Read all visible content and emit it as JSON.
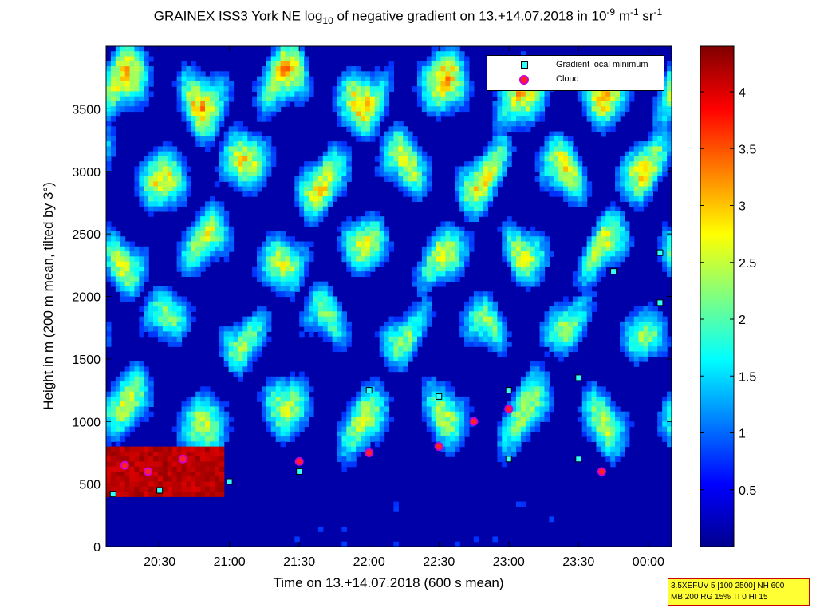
{
  "title": {
    "prefix": "GRAINEX ISS3 York NE log",
    "sub": "10",
    "middle": " of negative gradient on 13.+14.07.2018 in 10",
    "sup1": "-9",
    "unit1": " m",
    "sup2": "-1",
    "unit2": " sr",
    "sup3": "-1"
  },
  "legend": {
    "items": [
      {
        "label": "Gradient local minimum",
        "marker": "cyan-square"
      },
      {
        "label": "Cloud",
        "marker": "red-circle"
      }
    ]
  },
  "infobox": {
    "line1": "3.5XEFUV 5 [100 2500] NH 600",
    "line2": "MB 200 RG 15% TI 0 HI 15"
  },
  "colors": {
    "background_field": "#0000a8",
    "gradient_marker": "#33ffff",
    "cloud_marker": "#ff2020",
    "cloud_outline": "#d000d0"
  },
  "chart_data": {
    "type": "heatmap",
    "xlabel": "Time on 13.+14.07.2018 (600 s mean)",
    "ylabel": "Height in m (200 m mean, tilted by 3°)",
    "x_ticks": [
      "20:30",
      "21:00",
      "21:30",
      "22:00",
      "22:30",
      "23:00",
      "23:30",
      "00:00"
    ],
    "y_ticks": [
      "0",
      "500",
      "1000",
      "1500",
      "2000",
      "2500",
      "3000",
      "3500"
    ],
    "y_tick_values": [
      0,
      500,
      1000,
      1500,
      2000,
      2500,
      3000,
      3500
    ],
    "xlim": [
      "20:07",
      "00:10"
    ],
    "ylim": [
      0,
      4000
    ],
    "colorbar": {
      "colormap": "jet",
      "range": [
        0,
        4.4
      ],
      "ticks": [
        "0.5",
        "1",
        "1.5",
        "2",
        "2.5",
        "3",
        "3.5",
        "4"
      ],
      "tick_values": [
        0.5,
        1,
        1.5,
        2,
        2.5,
        3,
        3.5,
        4
      ]
    },
    "gradient_local_minimum_heights": [
      {
        "time": "20:10",
        "height": 420
      },
      {
        "time": "20:30",
        "height": 450
      },
      {
        "time": "21:00",
        "height": 520
      },
      {
        "time": "21:30",
        "height": 600
      },
      {
        "time": "22:00",
        "height": 750
      },
      {
        "time": "22:00",
        "height": 1250
      },
      {
        "time": "22:30",
        "height": 800
      },
      {
        "time": "22:30",
        "height": 1200
      },
      {
        "time": "23:00",
        "height": 700
      },
      {
        "time": "23:00",
        "height": 1250
      },
      {
        "time": "23:30",
        "height": 700
      },
      {
        "time": "23:30",
        "height": 1350
      },
      {
        "time": "23:45",
        "height": 2200
      },
      {
        "time": "00:05",
        "height": 1950
      },
      {
        "time": "00:05",
        "height": 2350
      }
    ],
    "cloud_heights": [
      {
        "time": "20:15",
        "height": 650
      },
      {
        "time": "20:25",
        "height": 600
      },
      {
        "time": "20:40",
        "height": 700
      },
      {
        "time": "21:30",
        "height": 680
      },
      {
        "time": "22:00",
        "height": 750
      },
      {
        "time": "22:30",
        "height": 800
      },
      {
        "time": "22:45",
        "height": 1000
      },
      {
        "time": "23:00",
        "height": 1100
      },
      {
        "time": "23:40",
        "height": 600
      }
    ]
  }
}
